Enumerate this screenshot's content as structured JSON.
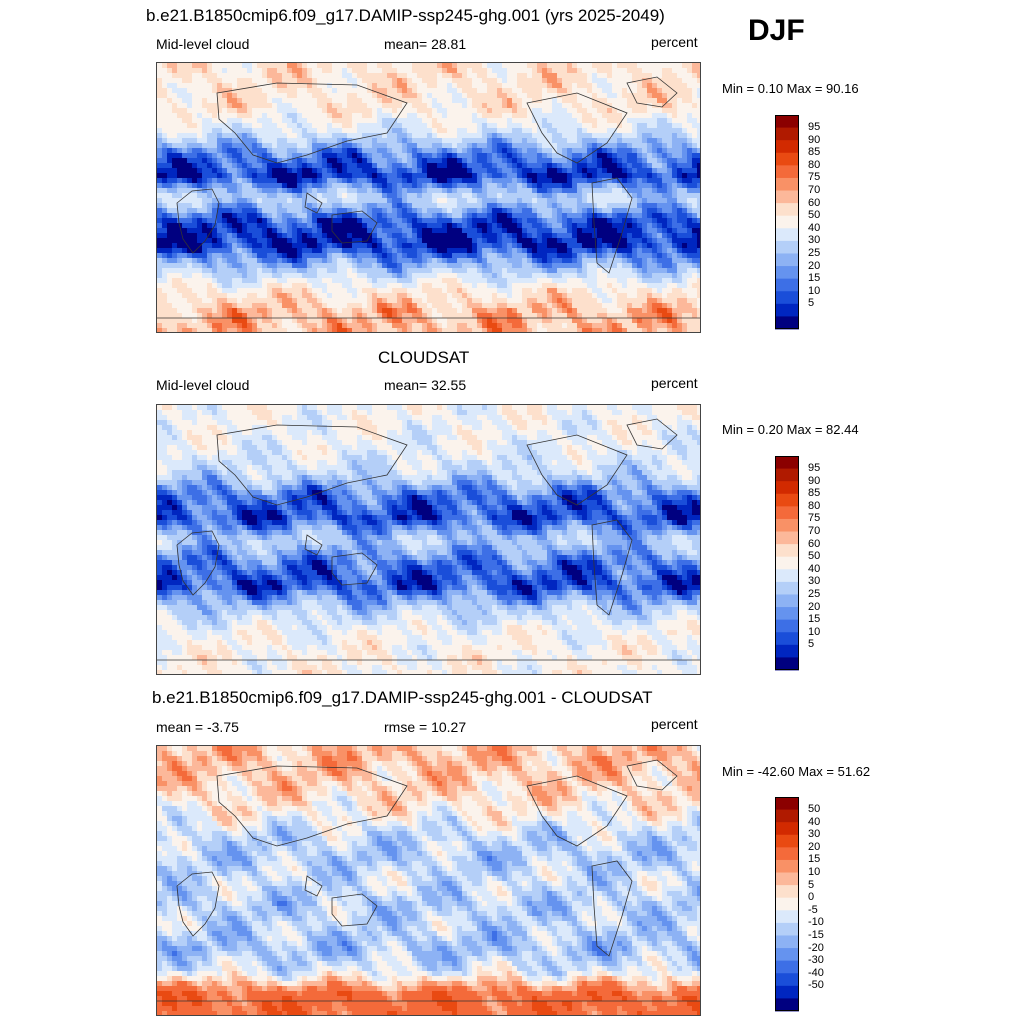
{
  "season": "DJF",
  "panels": [
    {
      "title": "b.e21.B1850cmip6.f09_g17.DAMIP-ssp245-ghg.001 (yrs 2025-2049)",
      "left_label": "Mid-level cloud",
      "center_label": "mean=  28.81",
      "right_label": "percent",
      "minmax": "Min =   0.10 Max =  90.16",
      "colorbar": {
        "labels": [
          "95",
          "90",
          "85",
          "80",
          "75",
          "70",
          "60",
          "50",
          "40",
          "30",
          "25",
          "20",
          "15",
          "10",
          "5"
        ],
        "colors": [
          "#8b0000",
          "#b01a00",
          "#d22a00",
          "#e94a12",
          "#f46a3a",
          "#f99166",
          "#fcb89a",
          "#fde0cc",
          "#fbf3ec",
          "#dbe9fb",
          "#b4cff8",
          "#8db2f4",
          "#6593ef",
          "#3d6fe6",
          "#1a4ed9",
          "#0026c0",
          "#000080"
        ]
      },
      "zones": [
        {
          "lat": 80,
          "value": 62
        },
        {
          "lat": 60,
          "value": 60
        },
        {
          "lat": 45,
          "value": 45
        },
        {
          "lat": 30,
          "value": 20
        },
        {
          "lat": 15,
          "value": 8
        },
        {
          "lat": 0,
          "value": 38
        },
        {
          "lat": -15,
          "value": 12
        },
        {
          "lat": -30,
          "value": 6
        },
        {
          "lat": -45,
          "value": 30
        },
        {
          "lat": -60,
          "value": 58
        },
        {
          "lat": -75,
          "value": 72
        }
      ]
    },
    {
      "title": "CLOUDSAT",
      "left_label": "Mid-level cloud",
      "center_label": "mean=  32.55",
      "right_label": "percent",
      "minmax": "Min =   0.20 Max =  82.44",
      "colorbar": {
        "labels": [
          "95",
          "90",
          "85",
          "80",
          "75",
          "70",
          "60",
          "50",
          "40",
          "30",
          "25",
          "20",
          "15",
          "10",
          "5"
        ],
        "colors": [
          "#8b0000",
          "#b01a00",
          "#d22a00",
          "#e94a12",
          "#f46a3a",
          "#f99166",
          "#fcb89a",
          "#fde0cc",
          "#fbf3ec",
          "#dbe9fb",
          "#b4cff8",
          "#8db2f4",
          "#6593ef",
          "#3d6fe6",
          "#1a4ed9",
          "#0026c0",
          "#000080"
        ]
      },
      "zones": [
        {
          "lat": 80,
          "value": 52
        },
        {
          "lat": 60,
          "value": 48
        },
        {
          "lat": 45,
          "value": 40
        },
        {
          "lat": 30,
          "value": 18
        },
        {
          "lat": 15,
          "value": 12
        },
        {
          "lat": 0,
          "value": 35
        },
        {
          "lat": -15,
          "value": 18
        },
        {
          "lat": -30,
          "value": 12
        },
        {
          "lat": -45,
          "value": 35
        },
        {
          "lat": -60,
          "value": 52
        },
        {
          "lat": -75,
          "value": 55
        }
      ]
    },
    {
      "title": "b.e21.B1850cmip6.f09_g17.DAMIP-ssp245-ghg.001 - CLOUDSAT",
      "left_label": "mean =  -3.75",
      "center_label": "rmse =  10.27",
      "right_label": "percent",
      "minmax": "Min = -42.60 Max =  51.62",
      "colorbar": {
        "labels": [
          "50",
          "40",
          "30",
          "20",
          "15",
          "10",
          "5",
          "0",
          "-5",
          "-10",
          "-15",
          "-20",
          "-30",
          "-40",
          "-50"
        ],
        "colors": [
          "#8b0000",
          "#b01a00",
          "#d22a00",
          "#e94a12",
          "#f46a3a",
          "#f99166",
          "#fcb89a",
          "#fde0cc",
          "#fbf3ec",
          "#dbe9fb",
          "#b4cff8",
          "#8db2f4",
          "#6593ef",
          "#3d6fe6",
          "#1a4ed9",
          "#0026c0",
          "#000080"
        ]
      },
      "zones": [
        {
          "lat": 80,
          "value": 12
        },
        {
          "lat": 60,
          "value": 8
        },
        {
          "lat": 45,
          "value": 3
        },
        {
          "lat": 30,
          "value": -6
        },
        {
          "lat": 15,
          "value": -8
        },
        {
          "lat": 0,
          "value": -4
        },
        {
          "lat": -15,
          "value": -8
        },
        {
          "lat": -30,
          "value": -6
        },
        {
          "lat": -45,
          "value": -10
        },
        {
          "lat": -60,
          "value": -2
        },
        {
          "lat": -75,
          "value": 25
        }
      ]
    }
  ],
  "chart_data": [
    {
      "type": "heatmap",
      "title": "b.e21.B1850cmip6.f09_g17.DAMIP-ssp245-ghg.001 (yrs 2025-2049)",
      "variable": "Mid-level cloud",
      "units": "percent",
      "mean": 28.81,
      "min": 0.1,
      "max": 90.16,
      "levels": [
        5,
        10,
        15,
        20,
        25,
        30,
        40,
        50,
        60,
        70,
        75,
        80,
        85,
        90,
        95
      ]
    },
    {
      "type": "heatmap",
      "title": "CLOUDSAT",
      "variable": "Mid-level cloud",
      "units": "percent",
      "mean": 32.55,
      "min": 0.2,
      "max": 82.44,
      "levels": [
        5,
        10,
        15,
        20,
        25,
        30,
        40,
        50,
        60,
        70,
        75,
        80,
        85,
        90,
        95
      ]
    },
    {
      "type": "heatmap",
      "title": "b.e21.B1850cmip6.f09_g17.DAMIP-ssp245-ghg.001 - CLOUDSAT",
      "units": "percent",
      "mean": -3.75,
      "rmse": 10.27,
      "min": -42.6,
      "max": 51.62,
      "levels": [
        -50,
        -40,
        -30,
        -20,
        -15,
        -10,
        -5,
        0,
        5,
        10,
        15,
        20,
        30,
        40,
        50
      ]
    }
  ]
}
